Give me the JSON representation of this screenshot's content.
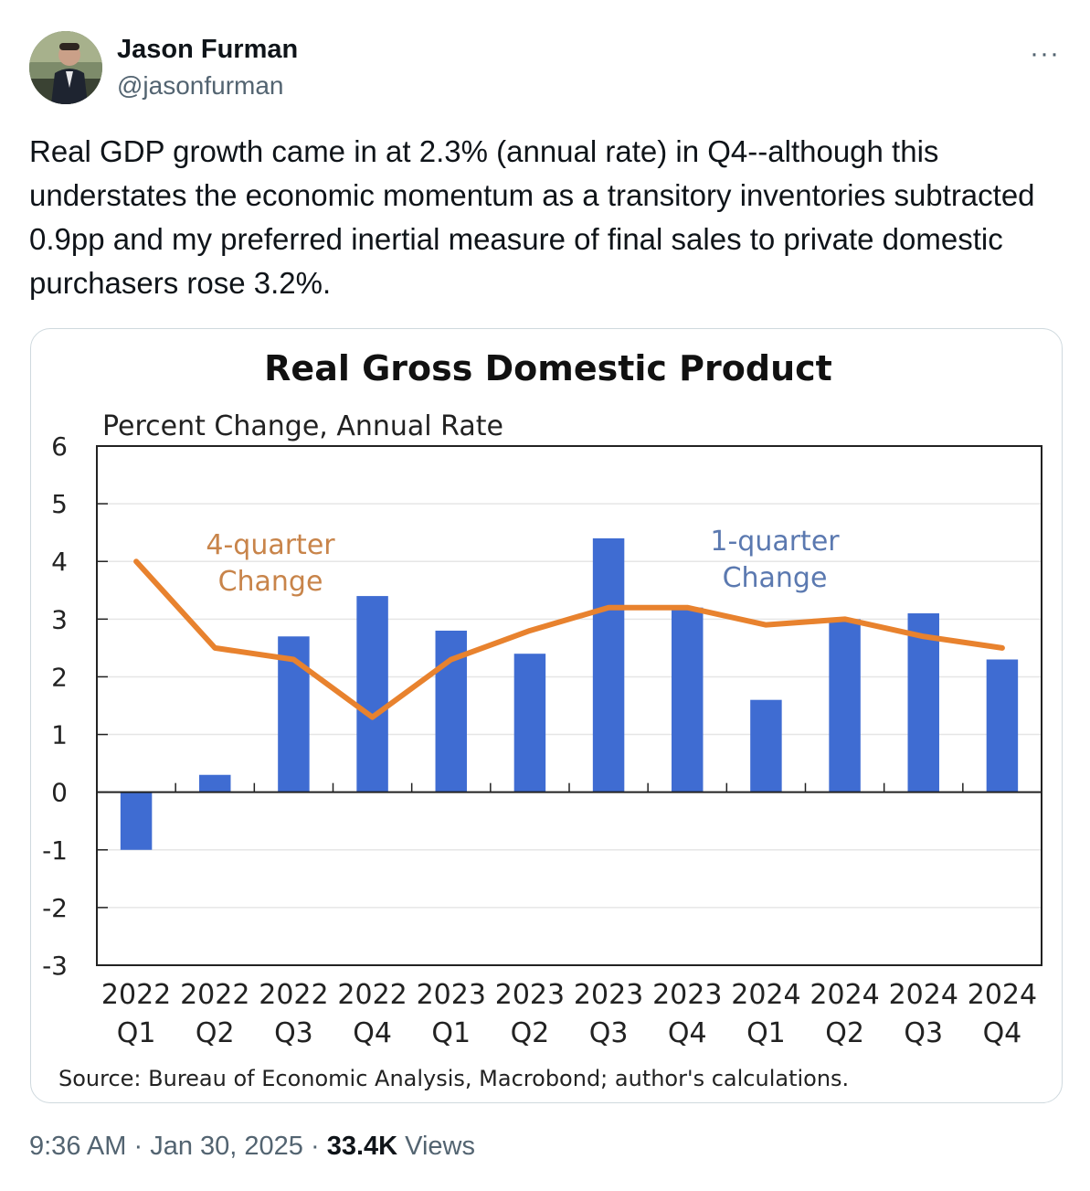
{
  "tweet": {
    "author_name": "Jason Furman",
    "author_handle": "@jasonfurman",
    "more_label": "···",
    "text": "Real GDP growth  came in at 2.3% (annual rate) in Q4--although this understates the economic momentum as a transitory inventories subtracted 0.9pp and my preferred inertial measure of final sales to private domestic purchasers rose 3.2%.",
    "time": "9:36 AM",
    "date": "Jan 30, 2025",
    "separator": "·",
    "views_count": "33.4K",
    "views_label": "Views"
  },
  "chart_data": {
    "type": "bar",
    "title": "Real Gross Domestic Product",
    "subtitle": "Percent Change, Annual Rate",
    "categories": [
      "2022 Q1",
      "2022 Q2",
      "2022 Q3",
      "2022 Q4",
      "2023 Q1",
      "2023 Q2",
      "2023 Q3",
      "2023 Q4",
      "2024 Q1",
      "2024 Q2",
      "2024 Q3",
      "2024 Q4"
    ],
    "category_lines": [
      [
        "2022",
        "Q1"
      ],
      [
        "2022",
        "Q2"
      ],
      [
        "2022",
        "Q3"
      ],
      [
        "2022",
        "Q4"
      ],
      [
        "2023",
        "Q1"
      ],
      [
        "2023",
        "Q2"
      ],
      [
        "2023",
        "Q3"
      ],
      [
        "2023",
        "Q4"
      ],
      [
        "2024",
        "Q1"
      ],
      [
        "2024",
        "Q2"
      ],
      [
        "2024",
        "Q3"
      ],
      [
        "2024",
        "Q4"
      ]
    ],
    "series": [
      {
        "name": "1-quarter Change",
        "type": "bar",
        "color": "#3f6cd2",
        "values": [
          -1.0,
          0.3,
          2.7,
          3.4,
          2.8,
          2.4,
          4.4,
          3.2,
          1.6,
          3.0,
          3.1,
          2.3
        ]
      },
      {
        "name": "4-quarter Change",
        "type": "line",
        "color": "#e8822e",
        "values": [
          4.0,
          2.5,
          2.3,
          1.3,
          2.3,
          2.8,
          3.2,
          3.2,
          2.9,
          3.0,
          2.7,
          2.5
        ]
      }
    ],
    "annotations": [
      {
        "lines": [
          "4-quarter",
          "Change"
        ],
        "color": "#c8844a"
      },
      {
        "lines": [
          "1-quarter",
          "Change"
        ],
        "color": "#5b79b0"
      }
    ],
    "ylim": [
      -3,
      6
    ],
    "yticks": [
      6,
      5,
      4,
      3,
      2,
      1,
      0,
      -1,
      -2,
      -3
    ],
    "grid": true,
    "source": "Source: Bureau of Economic Analysis, Macrobond; author's calculations."
  }
}
